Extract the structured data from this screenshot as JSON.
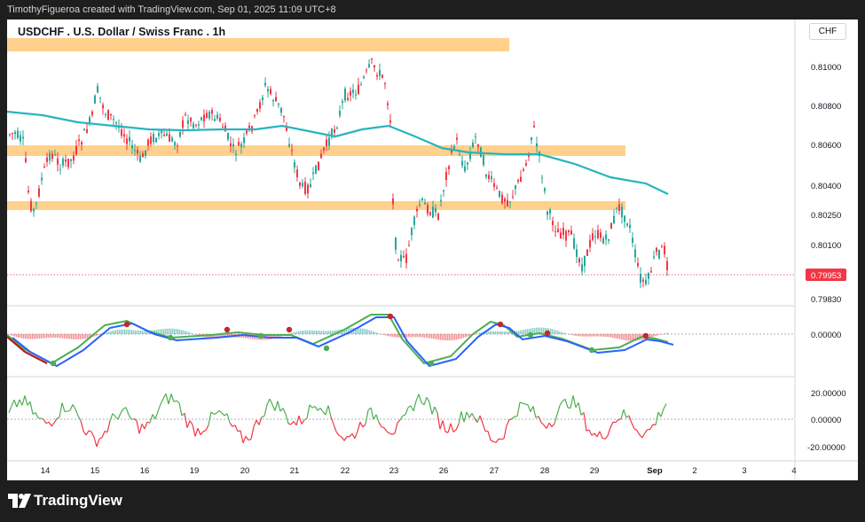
{
  "header": {
    "attribution": "TimothyFigueroa created with TradingView.com, Sep 01, 2025 11:09 UTC+8"
  },
  "chart": {
    "symbol_title": "USDCHF . U.S. Dollar / Swiss Franc . 1h",
    "currency": "CHF",
    "price_axis_labels": [
      "0.81000",
      "0.80800",
      "0.80600",
      "0.80400",
      "0.80250",
      "0.80100",
      "0.79830"
    ],
    "last_price": "0.79953",
    "last_price_color": "#f23645",
    "macd_axis_labels": [
      "0.00000"
    ],
    "osc_axis_labels": [
      "20.00000",
      "0.00000",
      "-20.00000"
    ],
    "time_axis_labels": [
      "14",
      "15",
      "16",
      "19",
      "20",
      "21",
      "22",
      "23",
      "26",
      "27",
      "28",
      "29",
      "Sep",
      "2",
      "3",
      "4"
    ],
    "colors": {
      "zone": "#ffcc80",
      "moving_average": "#26b5c0",
      "bull_candle": "#26a69a",
      "bear_candle": "#f23645",
      "macd_line": "#2962ff",
      "signal_line": "#4caf50",
      "osc_up": "#4caf50",
      "osc_down": "#f23645"
    }
  },
  "footer": {
    "brand": "TradingView"
  }
}
